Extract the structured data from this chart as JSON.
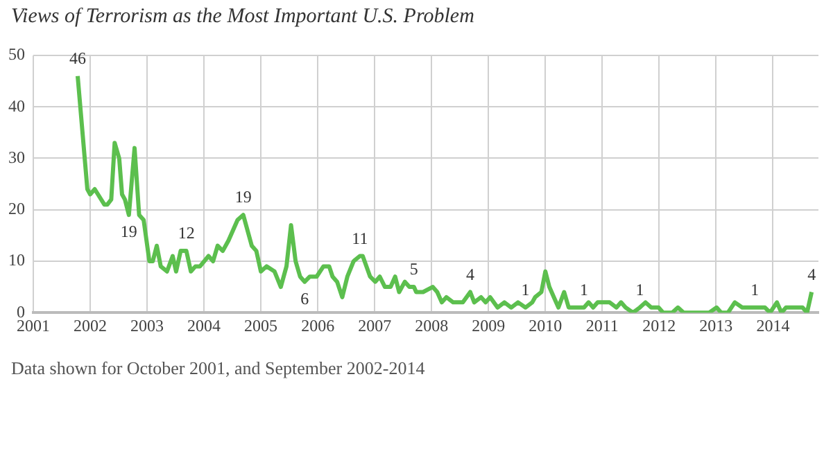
{
  "chart_data": {
    "type": "line",
    "title": "Views of Terrorism as the Most Important U.S. Problem",
    "color": "#5cbf4e",
    "x": [
      2001.78,
      2001.95,
      2002.0,
      2002.08,
      2002.25,
      2002.3,
      2002.37,
      2002.43,
      2002.51,
      2002.56,
      2002.61,
      2002.68,
      2002.78,
      2002.86,
      2002.94,
      2003.04,
      2003.1,
      2003.17,
      2003.24,
      2003.35,
      2003.45,
      2003.51,
      2003.59,
      2003.69,
      2003.77,
      2003.85,
      2003.93,
      2004.08,
      2004.16,
      2004.24,
      2004.33,
      2004.43,
      2004.59,
      2004.69,
      2004.84,
      2004.92,
      2005.0,
      2005.1,
      2005.24,
      2005.35,
      2005.45,
      2005.53,
      2005.61,
      2005.69,
      2005.77,
      2005.86,
      2005.98,
      2006.1,
      2006.2,
      2006.26,
      2006.34,
      2006.43,
      2006.52,
      2006.63,
      2006.74,
      2006.79,
      2006.92,
      2007.01,
      2007.09,
      2007.18,
      2007.28,
      2007.36,
      2007.43,
      2007.53,
      2007.61,
      2007.69,
      2007.73,
      2007.85,
      2008.02,
      2008.1,
      2008.18,
      2008.26,
      2008.38,
      2008.55,
      2008.68,
      2008.75,
      2008.87,
      2008.95,
      2009.03,
      2009.16,
      2009.28,
      2009.4,
      2009.52,
      2009.65,
      2009.77,
      2009.82,
      2009.93,
      2010.0,
      2010.07,
      2010.15,
      2010.23,
      2010.33,
      2010.41,
      2010.51,
      2010.68,
      2010.76,
      2010.84,
      2010.92,
      2011.13,
      2011.25,
      2011.33,
      2011.41,
      2011.54,
      2011.66,
      2011.76,
      2011.86,
      2011.99,
      2012.07,
      2012.23,
      2012.33,
      2012.43,
      2012.88,
      2013.01,
      2013.09,
      2013.21,
      2013.33,
      2013.46,
      2013.68,
      2013.86,
      2013.95,
      2014.07,
      2014.15,
      2014.23,
      2014.52,
      2014.6,
      2014.68
    ],
    "values": [
      46,
      24,
      23,
      24,
      21,
      21,
      22,
      33,
      30,
      23,
      22,
      19,
      32,
      19,
      18,
      10,
      10,
      13,
      9,
      8,
      11,
      8,
      12,
      12,
      8,
      9,
      9,
      11,
      10,
      13,
      12,
      14,
      18,
      19,
      13,
      12,
      8,
      9,
      8,
      5,
      9,
      17,
      10,
      7,
      6,
      7,
      7,
      9,
      9,
      7,
      6,
      3,
      7,
      10,
      11,
      11,
      7,
      6,
      7,
      5,
      5,
      7,
      4,
      6,
      5,
      5,
      4,
      4,
      5,
      4,
      2,
      3,
      2,
      2,
      4,
      2,
      3,
      2,
      3,
      1,
      2,
      1,
      2,
      1,
      2,
      3,
      4,
      8,
      5,
      3,
      1,
      4,
      1,
      1,
      1,
      2,
      1,
      2,
      2,
      1,
      2,
      1,
      0,
      1,
      2,
      1,
      1,
      0,
      0,
      1,
      0,
      0,
      1,
      0,
      0,
      2,
      1,
      1,
      1,
      0,
      2,
      0,
      1,
      1,
      0,
      4
    ],
    "xlim": [
      2001,
      2014.8
    ],
    "ylim": [
      0,
      50
    ],
    "xticks": [
      2001,
      2002,
      2003,
      2004,
      2005,
      2006,
      2007,
      2008,
      2009,
      2010,
      2011,
      2012,
      2013,
      2014
    ],
    "yticks": [
      0,
      10,
      20,
      30,
      40,
      50
    ],
    "grid": true,
    "annotations": [
      {
        "text": "46",
        "x": 2001.78,
        "y": 46
      },
      {
        "text": "19",
        "x": 2002.68,
        "y": 19
      },
      {
        "text": "12",
        "x": 2003.69,
        "y": 12
      },
      {
        "text": "19",
        "x": 2004.69,
        "y": 19
      },
      {
        "text": "6",
        "x": 2005.77,
        "y": 6
      },
      {
        "text": "11",
        "x": 2006.74,
        "y": 11
      },
      {
        "text": "5",
        "x": 2007.69,
        "y": 5
      },
      {
        "text": "4",
        "x": 2008.68,
        "y": 4
      },
      {
        "text": "1",
        "x": 2009.65,
        "y": 1
      },
      {
        "text": "1",
        "x": 2010.68,
        "y": 1
      },
      {
        "text": "1",
        "x": 2011.66,
        "y": 1
      },
      {
        "text": "1",
        "x": 2013.68,
        "y": 1
      },
      {
        "text": "4",
        "x": 2014.68,
        "y": 4
      },
      "Data shown for October 2001, and September 2002-2014"
    ]
  }
}
